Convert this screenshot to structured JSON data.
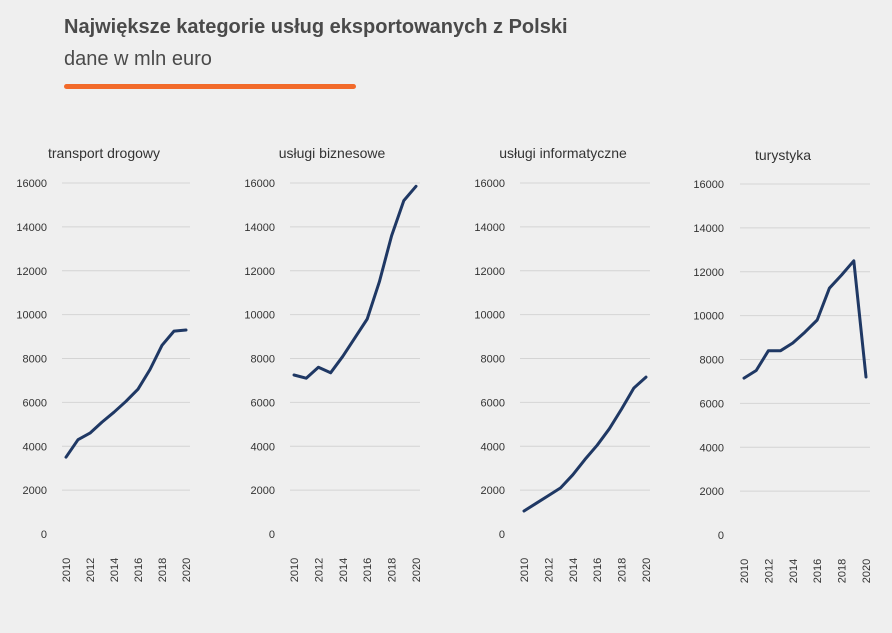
{
  "header": {
    "title": "Największe kategorie usług eksportowanych z Polski",
    "subtitle": "dane w mln euro"
  },
  "colors": {
    "accent": "#f26a2a",
    "line": "#1f3864",
    "text": "#333333"
  },
  "chart_data": [
    {
      "type": "line",
      "title": "transport drogowy",
      "x": [
        2010,
        2011,
        2012,
        2013,
        2014,
        2015,
        2016,
        2017,
        2018,
        2019,
        2020
      ],
      "values": [
        3500,
        4300,
        4600,
        5100,
        5550,
        6050,
        6600,
        7500,
        8600,
        9250,
        9300
      ],
      "xticks": [
        "2010",
        "2012",
        "2014",
        "2016",
        "2018",
        "2020"
      ],
      "yticks": [
        "0",
        "2000",
        "4000",
        "6000",
        "8000",
        "10000",
        "12000",
        "14000",
        "16000"
      ],
      "ylim": [
        0,
        16000
      ],
      "grid": true
    },
    {
      "type": "line",
      "title": "usługi biznesowe",
      "x": [
        2010,
        2011,
        2012,
        2013,
        2014,
        2015,
        2016,
        2017,
        2018,
        2019,
        2020
      ],
      "values": [
        7250,
        7100,
        7600,
        7350,
        8100,
        8950,
        9800,
        11500,
        13600,
        15200,
        15850
      ],
      "xticks": [
        "2010",
        "2012",
        "2014",
        "2016",
        "2018",
        "2020"
      ],
      "yticks": [
        "0",
        "2000",
        "4000",
        "6000",
        "8000",
        "10000",
        "12000",
        "14000",
        "16000"
      ],
      "ylim": [
        0,
        16000
      ],
      "grid": true
    },
    {
      "type": "line",
      "title": "usługi informatyczne",
      "x": [
        2010,
        2011,
        2012,
        2013,
        2014,
        2015,
        2016,
        2017,
        2018,
        2019,
        2020
      ],
      "values": [
        1050,
        1400,
        1750,
        2100,
        2700,
        3400,
        4050,
        4800,
        5700,
        6650,
        7150
      ],
      "xticks": [
        "2010",
        "2012",
        "2014",
        "2016",
        "2018",
        "2020"
      ],
      "yticks": [
        "0",
        "2000",
        "4000",
        "6000",
        "8000",
        "10000",
        "12000",
        "14000",
        "16000"
      ],
      "ylim": [
        0,
        16000
      ],
      "grid": true
    },
    {
      "type": "line",
      "title": "turystyka",
      "x": [
        2010,
        2011,
        2012,
        2013,
        2014,
        2015,
        2016,
        2017,
        2018,
        2019,
        2020
      ],
      "values": [
        7150,
        7500,
        8400,
        8400,
        8750,
        9250,
        9800,
        11250,
        11850,
        12500,
        7200
      ],
      "xticks": [
        "2010",
        "2012",
        "2014",
        "2016",
        "2018",
        "2020"
      ],
      "yticks": [
        "0",
        "2000",
        "4000",
        "6000",
        "8000",
        "10000",
        "12000",
        "14000",
        "16000"
      ],
      "ylim": [
        0,
        16000
      ],
      "grid": true
    }
  ]
}
